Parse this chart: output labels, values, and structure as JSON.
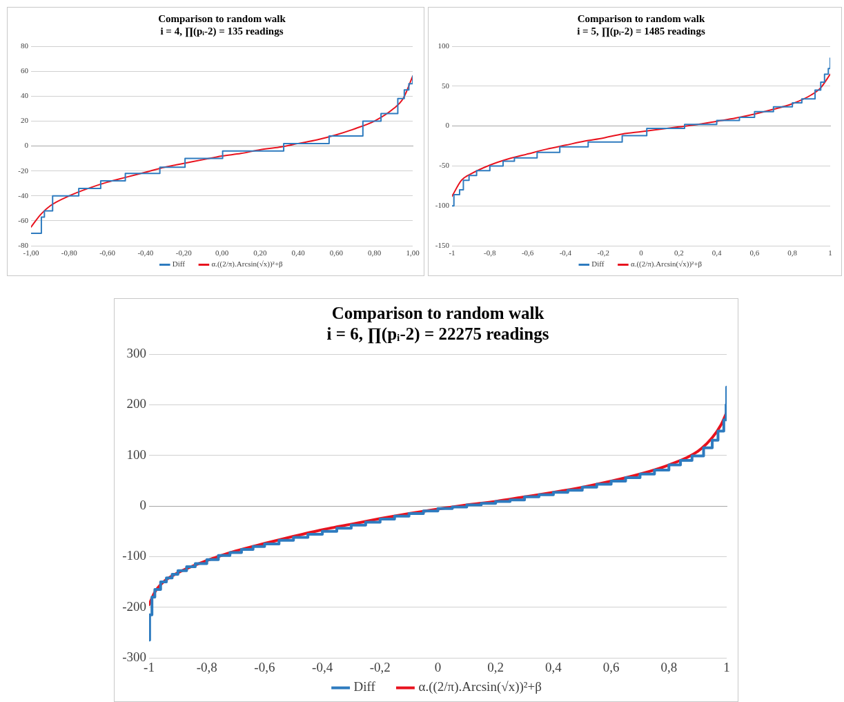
{
  "chart_data": [
    {
      "type": "line",
      "title": "Comparison to random walk",
      "subtitle": "i = 4, ∏(pᵢ-2) = 135 readings",
      "xlim": [
        -1,
        1
      ],
      "xticks": [
        {
          "value": -1,
          "label": "-1,00"
        },
        {
          "value": -0.8,
          "label": "-0,80"
        },
        {
          "value": -0.6,
          "label": "-0,60"
        },
        {
          "value": -0.4,
          "label": "-0,40"
        },
        {
          "value": -0.2,
          "label": "-0,20"
        },
        {
          "value": 0,
          "label": "0,00"
        },
        {
          "value": 0.2,
          "label": "0,20"
        },
        {
          "value": 0.4,
          "label": "0,40"
        },
        {
          "value": 0.6,
          "label": "0,60"
        },
        {
          "value": 0.8,
          "label": "0,80"
        },
        {
          "value": 1,
          "label": "1,00"
        }
      ],
      "ylim": [
        -80,
        80
      ],
      "yticks": [
        -80,
        -60,
        -40,
        -20,
        0,
        20,
        40,
        60,
        80
      ],
      "grid": "y",
      "legend": "bottom",
      "marker": "none",
      "series": [
        {
          "name": "Diff",
          "type": "step",
          "color": "#2e7bbf",
          "x": [
            -1,
            -0.946,
            -0.93,
            -0.887,
            -0.75,
            -0.635,
            -0.506,
            -0.325,
            -0.193,
            0.004,
            0.324,
            0.562,
            0.739,
            0.834,
            0.922,
            0.956,
            0.98,
            1
          ],
          "values": [
            -70,
            -57,
            -52,
            -40,
            -34,
            -28,
            -22,
            -17,
            -10,
            -4,
            2,
            8,
            20,
            26,
            38,
            45,
            50,
            56
          ]
        },
        {
          "name": "α.((2/π).Arcsin(√x))²+β",
          "type": "line",
          "color": "#e8121e",
          "x": [
            -1,
            -0.95,
            -0.9,
            -0.8,
            -0.7,
            -0.6,
            -0.5,
            -0.4,
            -0.3,
            -0.2,
            -0.1,
            0,
            0.1,
            0.2,
            0.3,
            0.4,
            0.5,
            0.6,
            0.7,
            0.8,
            0.9,
            0.95,
            1
          ],
          "values": [
            -65,
            -55,
            -48,
            -40,
            -34,
            -29,
            -25,
            -21,
            -17,
            -14,
            -11,
            -8,
            -6,
            -3,
            -1,
            2,
            5,
            9,
            14,
            20,
            30,
            38,
            56
          ]
        }
      ]
    },
    {
      "type": "line",
      "title": "Comparison to random walk",
      "subtitle": "i = 5, ∏(pᵢ-2) = 1485 readings",
      "xlim": [
        -1,
        1
      ],
      "xticks": [
        -1,
        {
          "value": -0.8,
          "label": "-0,8"
        },
        {
          "value": -0.6,
          "label": "-0,6"
        },
        {
          "value": -0.4,
          "label": "-0,4"
        },
        {
          "value": -0.2,
          "label": "-0,2"
        },
        0,
        {
          "value": 0.2,
          "label": "0,2"
        },
        {
          "value": 0.4,
          "label": "0,4"
        },
        {
          "value": 0.6,
          "label": "0,6"
        },
        {
          "value": 0.8,
          "label": "0,8"
        },
        1
      ],
      "ylim": [
        -150,
        100
      ],
      "yticks": [
        -150,
        -100,
        -50,
        0,
        50,
        100
      ],
      "grid": "y",
      "legend": "bottom",
      "marker": "none",
      "series": [
        {
          "name": "Diff",
          "type": "step",
          "color": "#2e7bbf",
          "x": [
            -1,
            -0.99,
            -0.96,
            -0.94,
            -0.91,
            -0.87,
            -0.8,
            -0.73,
            -0.67,
            -0.55,
            -0.43,
            -0.28,
            -0.1,
            0.03,
            0.23,
            0.4,
            0.52,
            0.6,
            0.7,
            0.8,
            0.85,
            0.92,
            0.95,
            0.97,
            0.99,
            1
          ],
          "values": [
            -100,
            -86,
            -80,
            -68,
            -62,
            -56,
            -50,
            -44,
            -40,
            -33,
            -26,
            -20,
            -12,
            -3,
            2,
            7,
            11,
            18,
            24,
            29,
            34,
            45,
            55,
            65,
            72,
            85
          ]
        },
        {
          "name": "α.((2/π).Arcsin(√x))²+β",
          "type": "line",
          "color": "#e8121e",
          "x": [
            -1,
            -0.95,
            -0.9,
            -0.8,
            -0.7,
            -0.6,
            -0.5,
            -0.4,
            -0.3,
            -0.2,
            -0.1,
            0,
            0.1,
            0.2,
            0.3,
            0.4,
            0.5,
            0.6,
            0.7,
            0.8,
            0.9,
            0.95,
            1
          ],
          "values": [
            -88,
            -68,
            -60,
            -49,
            -41,
            -35,
            -29,
            -24,
            -19,
            -15,
            -10,
            -7,
            -4,
            -1,
            2,
            6,
            10,
            15,
            21,
            28,
            39,
            48,
            65
          ]
        }
      ]
    },
    {
      "type": "line",
      "title": "Comparison to random walk",
      "subtitle": "i = 6, ∏(pᵢ-2) = 22275 readings",
      "xlim": [
        -1,
        1
      ],
      "xticks": [
        -1,
        {
          "value": -0.8,
          "label": "-0,8"
        },
        {
          "value": -0.6,
          "label": "-0,6"
        },
        {
          "value": -0.4,
          "label": "-0,4"
        },
        {
          "value": -0.2,
          "label": "-0,2"
        },
        0,
        {
          "value": 0.2,
          "label": "0,2"
        },
        {
          "value": 0.4,
          "label": "0,4"
        },
        {
          "value": 0.6,
          "label": "0,6"
        },
        {
          "value": 0.8,
          "label": "0,8"
        },
        1
      ],
      "ylim": [
        -300,
        300
      ],
      "yticks": [
        -300,
        -200,
        -100,
        0,
        100,
        200,
        300
      ],
      "grid": "y",
      "legend": "bottom",
      "marker": "none",
      "series": [
        {
          "name": "Diff",
          "type": "step",
          "color": "#2e7bbf",
          "x": [
            -1,
            -0.998,
            -0.99,
            -0.98,
            -0.96,
            -0.94,
            -0.92,
            -0.9,
            -0.87,
            -0.84,
            -0.8,
            -0.76,
            -0.72,
            -0.68,
            -0.64,
            -0.6,
            -0.55,
            -0.5,
            -0.45,
            -0.4,
            -0.35,
            -0.3,
            -0.25,
            -0.2,
            -0.15,
            -0.1,
            -0.05,
            0,
            0.05,
            0.1,
            0.15,
            0.2,
            0.25,
            0.3,
            0.35,
            0.4,
            0.45,
            0.5,
            0.55,
            0.6,
            0.65,
            0.7,
            0.75,
            0.8,
            0.84,
            0.88,
            0.92,
            0.95,
            0.97,
            0.99,
            0.998,
            1
          ],
          "values": [
            -265,
            -215,
            -180,
            -165,
            -150,
            -142,
            -135,
            -128,
            -120,
            -114,
            -106,
            -98,
            -92,
            -86,
            -80,
            -75,
            -68,
            -62,
            -56,
            -50,
            -44,
            -38,
            -32,
            -26,
            -20,
            -15,
            -10,
            -5,
            -2,
            2,
            5,
            9,
            12,
            18,
            22,
            27,
            31,
            37,
            43,
            49,
            56,
            63,
            71,
            81,
            90,
            99,
            115,
            130,
            148,
            170,
            200,
            235
          ]
        },
        {
          "name": "α.((2/π).Arcsin(√x))²+β",
          "type": "line",
          "color": "#e8121e",
          "x": [
            -1,
            -0.98,
            -0.95,
            -0.9,
            -0.8,
            -0.7,
            -0.6,
            -0.5,
            -0.4,
            -0.3,
            -0.2,
            -0.1,
            0,
            0.1,
            0.2,
            0.3,
            0.4,
            0.5,
            0.6,
            0.7,
            0.8,
            0.9,
            0.95,
            0.98,
            1
          ],
          "values": [
            -195,
            -170,
            -150,
            -132,
            -108,
            -89,
            -74,
            -60,
            -47,
            -36,
            -25,
            -15,
            -6,
            2,
            9,
            18,
            27,
            37,
            49,
            63,
            81,
            108,
            135,
            160,
            185
          ]
        }
      ]
    }
  ]
}
